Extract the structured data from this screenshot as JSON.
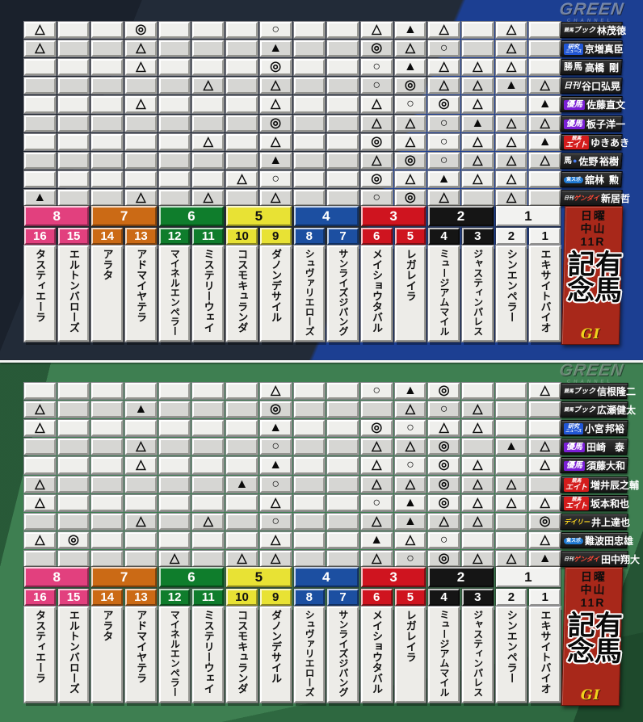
{
  "logo": {
    "line1": "GREEN",
    "line2": "CHANNEL"
  },
  "race_panel": {
    "day": "日曜",
    "track": "中山",
    "race_no": "11R",
    "race_name": "有馬記念",
    "grade": "GI",
    "bg_color": "#a8281a",
    "grade_color": "#f0d21c"
  },
  "marks_used": [
    "◎",
    "○",
    "▲",
    "△"
  ],
  "frames": [
    {
      "no": "8",
      "bg": "#e2407e",
      "fg": "#ffffff"
    },
    {
      "no": "7",
      "bg": "#cb6a15",
      "fg": "#ffffff"
    },
    {
      "no": "6",
      "bg": "#0f7d2c",
      "fg": "#ffffff"
    },
    {
      "no": "5",
      "bg": "#e8e234",
      "fg": "#111111"
    },
    {
      "no": "4",
      "bg": "#1c4fa1",
      "fg": "#ffffff"
    },
    {
      "no": "3",
      "bg": "#cf141f",
      "fg": "#ffffff"
    },
    {
      "no": "2",
      "bg": "#151515",
      "fg": "#ffffff"
    },
    {
      "no": "1",
      "bg": "#f2f2f0",
      "fg": "#111111"
    }
  ],
  "horses": [
    {
      "num": "16",
      "frame": "8",
      "name": "タスティエーラ"
    },
    {
      "num": "15",
      "frame": "8",
      "name": "エルトンバローズ"
    },
    {
      "num": "14",
      "frame": "7",
      "name": "アラタ"
    },
    {
      "num": "13",
      "frame": "7",
      "name": "アドマイヤテラ"
    },
    {
      "num": "12",
      "frame": "6",
      "name": "マイネルエンペラー"
    },
    {
      "num": "11",
      "frame": "6",
      "name": "ミステリーウェイ"
    },
    {
      "num": "10",
      "frame": "5",
      "name": "コスモキュランダ"
    },
    {
      "num": "9",
      "frame": "5",
      "name": "ダノンデサイル"
    },
    {
      "num": "8",
      "frame": "4",
      "name": "シュヴァリエローズ"
    },
    {
      "num": "7",
      "frame": "4",
      "name": "サンライズジパング"
    },
    {
      "num": "6",
      "frame": "3",
      "name": "メイショウタバル"
    },
    {
      "num": "5",
      "frame": "3",
      "name": "レガレイラ"
    },
    {
      "num": "4",
      "frame": "2",
      "name": "ミュージアムマイル"
    },
    {
      "num": "3",
      "frame": "2",
      "name": "ジャスティンパレス"
    },
    {
      "num": "2",
      "frame": "1",
      "name": "シンエンペラー"
    },
    {
      "num": "1",
      "frame": "1",
      "name": "エキサイトバイオ"
    }
  ],
  "badges": {
    "book": {
      "small": "競馬",
      "main": "ブック"
    },
    "kenkyu": {
      "line1": "研究",
      "line2": "ニュース"
    },
    "kachiuma": {
      "main": "勝馬"
    },
    "nikkan": {
      "main": "日刊"
    },
    "yuma": {
      "main": "優馬"
    },
    "eight": {
      "small": "競馬",
      "main": "エイト"
    },
    "uma": {
      "main": "馬",
      "icon": "●"
    },
    "tospo": {
      "main": "東スポ"
    },
    "gendai": {
      "small": "日刊",
      "main": "ゲンダイ"
    },
    "daily": {
      "main": "デイリー"
    }
  },
  "tables": [
    {
      "pundits": [
        {
          "badge": "book",
          "name": "林 茂徳",
          "marks": [
            "△",
            "",
            "",
            "◎",
            "",
            "",
            "",
            "○",
            "",
            "",
            "△",
            "▲",
            "△",
            "",
            "△",
            ""
          ]
        },
        {
          "badge": "kenkyu",
          "name": "京増 真臣",
          "marks": [
            "△",
            "",
            "",
            "△",
            "",
            "",
            "",
            "▲",
            "",
            "",
            "◎",
            "△",
            "○",
            "",
            "△",
            ""
          ]
        },
        {
          "badge": "kachiuma",
          "name": "高橋 剛",
          "marks": [
            "",
            "",
            "",
            "△",
            "",
            "",
            "",
            "◎",
            "",
            "",
            "○",
            "▲",
            "△",
            "△",
            "△",
            ""
          ]
        },
        {
          "badge": "nikkan",
          "name": "谷口 弘晃",
          "marks": [
            "",
            "",
            "",
            "",
            "",
            "△",
            "",
            "△",
            "",
            "",
            "○",
            "◎",
            "△",
            "△",
            "▲",
            "△"
          ]
        },
        {
          "badge": "yuma",
          "name": "佐藤 直文",
          "marks": [
            "",
            "",
            "",
            "△",
            "",
            "",
            "",
            "△",
            "",
            "",
            "△",
            "○",
            "◎",
            "△",
            "",
            "▲"
          ]
        },
        {
          "badge": "yuma",
          "name": "板子 洋一",
          "marks": [
            "",
            "",
            "",
            "",
            "",
            "",
            "",
            "◎",
            "",
            "",
            "△",
            "△",
            "○",
            "▲",
            "△",
            "△"
          ]
        },
        {
          "badge": "eight",
          "name": "ゆきあき",
          "marks": [
            "",
            "",
            "",
            "",
            "",
            "△",
            "",
            "△",
            "",
            "",
            "◎",
            "△",
            "○",
            "△",
            "△",
            "▲"
          ]
        },
        {
          "badge": "uma",
          "name": "佐野 裕樹",
          "marks": [
            "",
            "",
            "",
            "",
            "",
            "",
            "",
            "▲",
            "",
            "",
            "△",
            "◎",
            "○",
            "△",
            "△",
            "△"
          ]
        },
        {
          "badge": "tospo",
          "name": "舘林 勲",
          "marks": [
            "",
            "",
            "",
            "",
            "",
            "",
            "△",
            "○",
            "",
            "",
            "◎",
            "△",
            "▲",
            "△",
            "△",
            ""
          ]
        },
        {
          "badge": "gendai",
          "name": "新居 哲",
          "marks": [
            "▲",
            "",
            "",
            "△",
            "",
            "△",
            "",
            "△",
            "",
            "",
            "○",
            "◎",
            "△",
            "",
            "△",
            ""
          ]
        }
      ]
    },
    {
      "pundits": [
        {
          "badge": "book",
          "name": "信根 隆二",
          "marks": [
            "",
            "",
            "",
            "",
            "",
            "",
            "",
            "△",
            "",
            "",
            "○",
            "▲",
            "◎",
            "",
            "",
            "△"
          ]
        },
        {
          "badge": "book",
          "name": "広瀬 健太",
          "marks": [
            "△",
            "",
            "",
            "▲",
            "",
            "",
            "",
            "◎",
            "",
            "",
            "",
            "△",
            "○",
            "△",
            "",
            ""
          ]
        },
        {
          "badge": "kenkyu",
          "name": "小宮 邦裕",
          "marks": [
            "△",
            "",
            "",
            "",
            "",
            "",
            "",
            "▲",
            "",
            "",
            "◎",
            "○",
            "△",
            "△",
            "",
            ""
          ]
        },
        {
          "badge": "yuma",
          "name": "田崎 泰",
          "marks": [
            "",
            "",
            "",
            "△",
            "",
            "",
            "",
            "○",
            "",
            "",
            "△",
            "△",
            "◎",
            "",
            "▲",
            "△"
          ]
        },
        {
          "badge": "yuma",
          "name": "須藤 大和",
          "marks": [
            "",
            "",
            "",
            "△",
            "",
            "",
            "",
            "▲",
            "",
            "",
            "△",
            "○",
            "◎",
            "△",
            "",
            "△"
          ]
        },
        {
          "badge": "eight",
          "name": "増井 辰之輔",
          "marks": [
            "△",
            "",
            "",
            "",
            "",
            "",
            "▲",
            "○",
            "",
            "",
            "△",
            "△",
            "◎",
            "△",
            "△",
            ""
          ]
        },
        {
          "badge": "eight",
          "name": "坂本 和也",
          "marks": [
            "△",
            "",
            "",
            "",
            "",
            "",
            "",
            "△",
            "",
            "",
            "○",
            "▲",
            "◎",
            "△",
            "△",
            "△"
          ]
        },
        {
          "badge": "daily",
          "name": "井上 達也",
          "marks": [
            "",
            "",
            "",
            "△",
            "",
            "△",
            "",
            "○",
            "",
            "",
            "△",
            "▲",
            "△",
            "△",
            "",
            "◎"
          ]
        },
        {
          "badge": "tospo",
          "name": "難波田 忠雄",
          "marks": [
            "△",
            "◎",
            "",
            "",
            "",
            "",
            "",
            "△",
            "",
            "",
            "▲",
            "△",
            "○",
            "",
            "",
            "△"
          ]
        },
        {
          "badge": "gendai",
          "name": "田中 翔大",
          "marks": [
            "",
            "",
            "",
            "",
            "△",
            "",
            "△",
            "△",
            "",
            "",
            "△",
            "○",
            "◎",
            "△",
            "△",
            "▲"
          ]
        }
      ]
    }
  ]
}
